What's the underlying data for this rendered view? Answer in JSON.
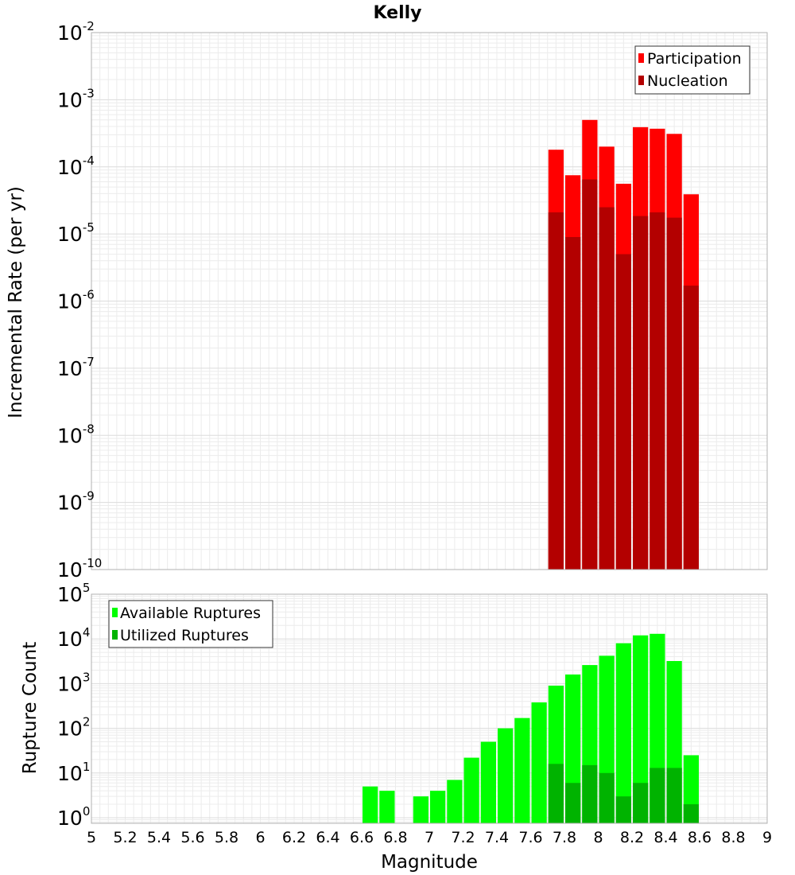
{
  "chart_data": [
    {
      "type": "bar",
      "title": "Kelly",
      "xlabel": "Magnitude",
      "ylabel": "Incremental Rate (per yr)",
      "yscale": "log",
      "xlim": [
        5,
        9
      ],
      "ylim": [
        1e-10,
        0.01
      ],
      "ytick_exponents": [
        "-2",
        "-3",
        "-4",
        "-5",
        "-6",
        "-7",
        "-8",
        "-9",
        "-10"
      ],
      "legend": {
        "position": "top-right",
        "entries": [
          "Participation",
          "Nucleation"
        ]
      },
      "colors": {
        "Participation": "#ff0000",
        "Nucleation": "#b30000"
      },
      "categories": [
        7.75,
        7.85,
        7.95,
        8.05,
        8.15,
        8.25,
        8.35,
        8.45,
        8.55
      ],
      "series": [
        {
          "name": "Participation",
          "values": [
            0.00018,
            7.5e-05,
            0.0005,
            0.0002,
            5.6e-05,
            0.00039,
            0.00037,
            0.00031,
            3.9e-05
          ]
        },
        {
          "name": "Nucleation",
          "values": [
            2.1e-05,
            9e-06,
            6.5e-05,
            2.5e-05,
            5e-06,
            1.85e-05,
            2.1e-05,
            1.75e-05,
            1.7e-06
          ]
        }
      ]
    },
    {
      "type": "bar",
      "xlabel": "Magnitude",
      "ylabel": "Rupture Count",
      "yscale": "log",
      "xlim": [
        5,
        9
      ],
      "ylim": [
        0.75,
        100000.0
      ],
      "xticks": [
        "5",
        "5.2",
        "5.4",
        "5.6",
        "5.8",
        "6",
        "6.2",
        "6.4",
        "6.6",
        "6.8",
        "7",
        "7.2",
        "7.4",
        "7.6",
        "7.8",
        "8",
        "8.2",
        "8.4",
        "8.6",
        "8.8",
        "9"
      ],
      "ytick_exponents": [
        "5",
        "4",
        "3",
        "2",
        "1",
        "0"
      ],
      "legend": {
        "position": "top-left",
        "entries": [
          "Available Ruptures",
          "Utilized Ruptures"
        ]
      },
      "colors": {
        "Available Ruptures": "#00ff00",
        "Utilized Ruptures": "#00b300"
      },
      "categories": [
        6.65,
        6.75,
        6.95,
        7.05,
        7.15,
        7.25,
        7.35,
        7.45,
        7.55,
        7.65,
        7.75,
        7.85,
        7.95,
        8.05,
        8.15,
        8.25,
        8.35,
        8.45,
        8.55
      ],
      "series": [
        {
          "name": "Available Ruptures",
          "values": [
            5,
            4,
            3,
            4,
            7,
            22,
            50,
            100,
            170,
            380,
            900,
            1600,
            2600,
            4200,
            8000,
            12000,
            13000,
            3200,
            25
          ]
        },
        {
          "name": "Utilized Ruptures",
          "values": [
            0,
            0,
            0,
            0,
            0,
            0,
            0,
            0,
            0,
            0,
            16,
            6,
            15,
            10,
            3,
            6,
            13,
            13,
            2
          ]
        }
      ]
    }
  ]
}
